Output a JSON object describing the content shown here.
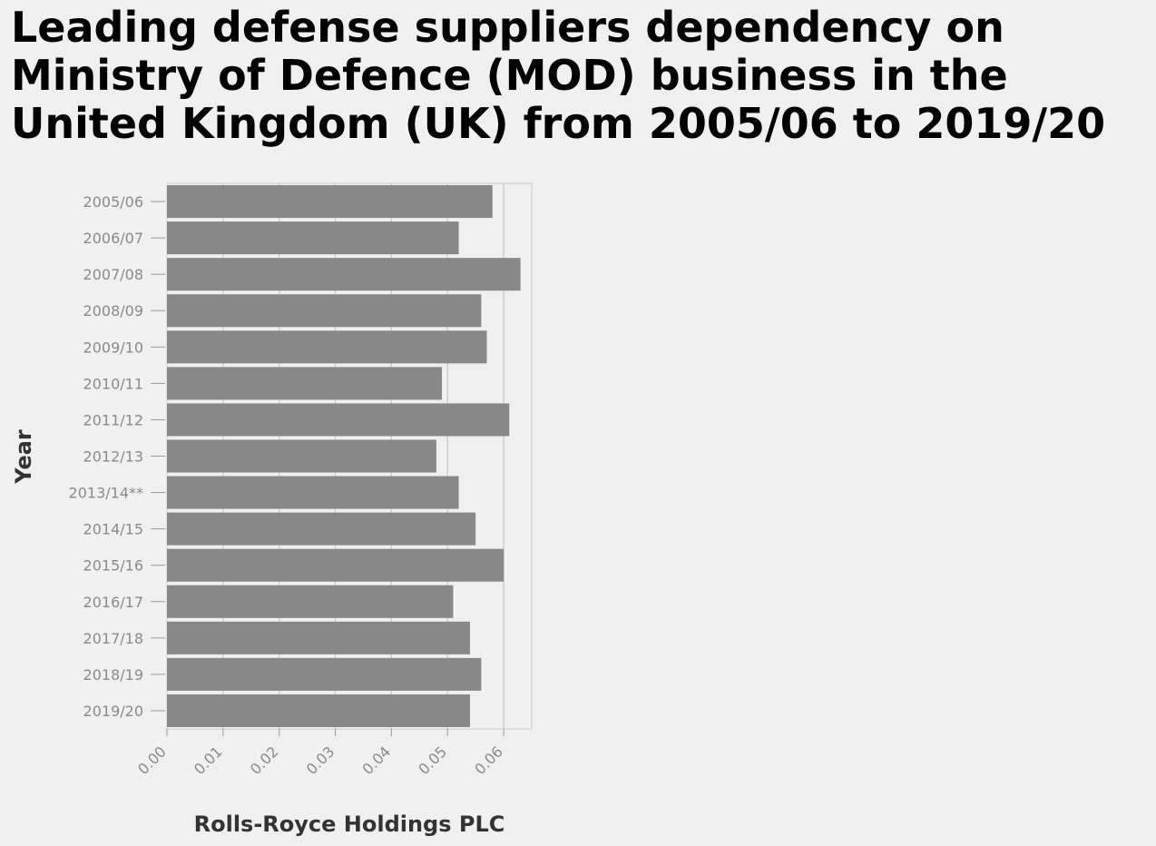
{
  "chart_data": {
    "type": "bar",
    "orientation": "horizontal",
    "title": "Leading defense suppliers dependency on Ministry of Defence (MOD) business in the United Kingdom (UK) from 2005/06 to 2019/20",
    "xlabel": "Rolls-Royce Holdings PLC",
    "ylabel": "Year",
    "categories": [
      "2005/06",
      "2006/07",
      "2007/08",
      "2008/09",
      "2009/10",
      "2010/11",
      "2011/12",
      "2012/13",
      "2013/14**",
      "2014/15",
      "2015/16",
      "2016/17",
      "2017/18",
      "2018/19",
      "2019/20"
    ],
    "values": [
      0.058,
      0.052,
      0.063,
      0.056,
      0.057,
      0.049,
      0.061,
      0.048,
      0.052,
      0.055,
      0.06,
      0.051,
      0.054,
      0.056,
      0.054
    ],
    "xlim": [
      0,
      0.065
    ],
    "xticks": [
      "0.00",
      "0.01",
      "0.02",
      "0.03",
      "0.04",
      "0.05",
      "0.06"
    ],
    "grid": "vertical",
    "bar_color": "#888888"
  }
}
